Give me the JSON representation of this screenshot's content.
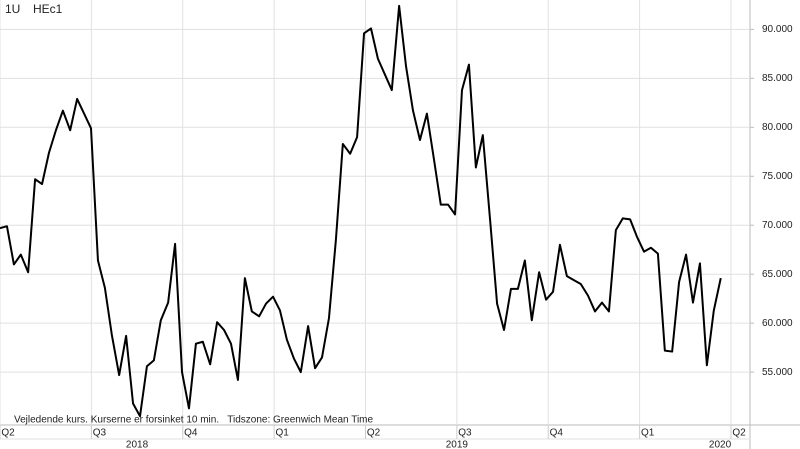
{
  "header": {
    "symbol": "1U",
    "instrument": "HEc1"
  },
  "note": "Vejledende kurs. Kurserne er forsinket 10 min.   Tidszone: Greenwich Mean Time",
  "chart_data": {
    "type": "line",
    "x": [
      2018.25,
      2018.269,
      2018.288,
      2018.307,
      2018.327,
      2018.346,
      2018.365,
      2018.384,
      2018.403,
      2018.422,
      2018.442,
      2018.461,
      2018.48,
      2018.499,
      2018.518,
      2018.537,
      2018.556,
      2018.576,
      2018.595,
      2018.614,
      2018.633,
      2018.652,
      2018.671,
      2018.69,
      2018.71,
      2018.729,
      2018.748,
      2018.767,
      2018.786,
      2018.805,
      2018.825,
      2018.844,
      2018.863,
      2018.882,
      2018.901,
      2018.92,
      2018.939,
      2018.959,
      2018.978,
      2018.997,
      2019.016,
      2019.035,
      2019.054,
      2019.073,
      2019.093,
      2019.112,
      2019.131,
      2019.15,
      2019.169,
      2019.188,
      2019.208,
      2019.227,
      2019.246,
      2019.265,
      2019.284,
      2019.303,
      2019.322,
      2019.342,
      2019.361,
      2019.38,
      2019.399,
      2019.418,
      2019.437,
      2019.456,
      2019.476,
      2019.495,
      2019.514,
      2019.533,
      2019.552,
      2019.571,
      2019.591,
      2019.61,
      2019.629,
      2019.648,
      2019.667,
      2019.686,
      2019.705,
      2019.725,
      2019.744,
      2019.763,
      2019.782,
      2019.801,
      2019.82,
      2019.839,
      2019.859,
      2019.878,
      2019.897,
      2019.916,
      2019.935,
      2019.954,
      2019.974,
      2019.993,
      2020.012,
      2020.031,
      2020.05,
      2020.069,
      2020.089,
      2020.108,
      2020.127,
      2020.146,
      2020.165,
      2020.184,
      2020.203,
      2020.222
    ],
    "series": [
      {
        "name": "HEc1",
        "color": "#000000",
        "values": [
          69.7,
          69.9,
          66.0,
          67.0,
          65.2,
          74.7,
          74.2,
          77.4,
          79.7,
          81.7,
          79.7,
          82.9,
          81.4,
          79.9,
          66.4,
          63.6,
          58.8,
          54.7,
          58.7,
          51.8,
          50.5,
          55.6,
          56.2,
          60.3,
          62.1,
          68.1,
          55.0,
          51.3,
          57.9,
          58.1,
          55.8,
          60.1,
          59.3,
          57.9,
          54.2,
          64.6,
          61.2,
          60.7,
          62.0,
          62.7,
          61.3,
          58.3,
          56.4,
          55.0,
          59.7,
          55.4,
          56.5,
          60.5,
          68.5,
          78.3,
          77.3,
          79.0,
          89.6,
          90.1,
          87.0,
          85.4,
          83.8,
          92.4,
          86.2,
          81.7,
          78.7,
          81.4,
          76.8,
          72.1,
          72.1,
          71.1,
          83.8,
          86.4,
          75.9,
          79.2,
          70.5,
          62.0,
          59.3,
          63.5,
          63.5,
          66.4,
          60.3,
          65.2,
          62.4,
          63.2,
          68.0,
          64.8,
          64.4,
          64.0,
          62.8,
          61.2,
          62.1,
          61.2,
          69.5,
          70.7,
          70.6,
          68.8,
          67.3,
          67.7,
          67.1,
          57.2,
          57.1,
          64.2,
          67.0,
          62.1,
          66.1,
          55.7,
          61.3,
          64.6
        ]
      }
    ],
    "xlim": [
      2018.25,
      2020.302
    ],
    "xticks": [
      {
        "value": 2018.25,
        "label": "Q2"
      },
      {
        "value": 2018.5,
        "label": "Q3"
      },
      {
        "value": 2018.75,
        "label": "Q4"
      },
      {
        "value": 2019.0,
        "label": "Q1"
      },
      {
        "value": 2019.25,
        "label": "Q2"
      },
      {
        "value": 2019.5,
        "label": "Q3"
      },
      {
        "value": 2019.75,
        "label": "Q4"
      },
      {
        "value": 2020.0,
        "label": "Q1"
      },
      {
        "value": 2020.25,
        "label": "Q2"
      }
    ],
    "year_labels": [
      {
        "value": 2018.625,
        "label": "2018"
      },
      {
        "value": 2019.5,
        "label": "2019"
      },
      {
        "value": 2020.22,
        "label": "2020"
      }
    ],
    "ylim": [
      49.6,
      93.0
    ],
    "yticks": [
      {
        "value": 55,
        "label": "55.000"
      },
      {
        "value": 60,
        "label": "60.000"
      },
      {
        "value": 65,
        "label": "65.000"
      },
      {
        "value": 70,
        "label": "70.000"
      },
      {
        "value": 75,
        "label": "75.000"
      },
      {
        "value": 80,
        "label": "80.000"
      },
      {
        "value": 85,
        "label": "85.000"
      },
      {
        "value": 90,
        "label": "90.000"
      }
    ],
    "grid": true
  }
}
